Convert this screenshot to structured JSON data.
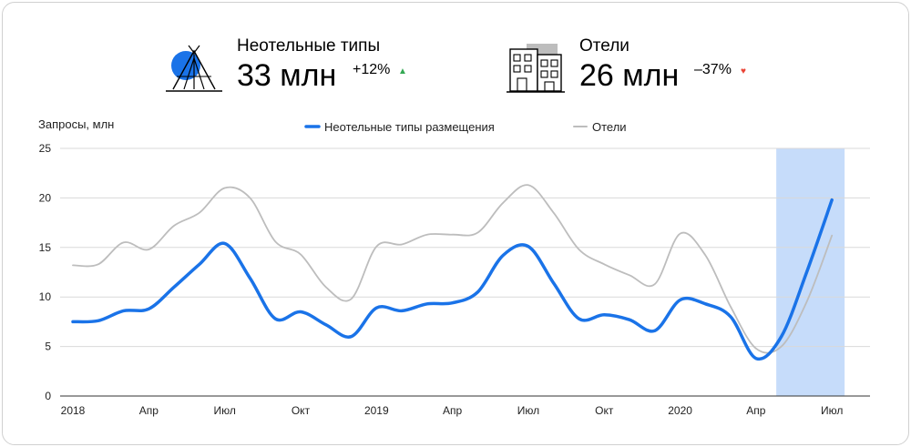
{
  "kpis": {
    "nonhotel": {
      "label": "Неотельные типы",
      "value": "33 млн",
      "change": "+12%",
      "icon": "tent-icon",
      "arrow_color": "#34a853"
    },
    "hotels": {
      "label": "Отели",
      "value": "26 млн",
      "change": "–37%",
      "icon": "building-icon",
      "arrow_color": "#ea4335"
    }
  },
  "chart_data": {
    "type": "line",
    "ylabel": "Запросы, млн",
    "ylim": [
      0,
      25
    ],
    "yticks": [
      0,
      5,
      10,
      15,
      20,
      25
    ],
    "xlim": [
      0,
      31
    ],
    "xticks": [
      {
        "x": 0,
        "label": "2018"
      },
      {
        "x": 3,
        "label": "Апр"
      },
      {
        "x": 6,
        "label": "Июл"
      },
      {
        "x": 9,
        "label": "Окт"
      },
      {
        "x": 12,
        "label": "2019"
      },
      {
        "x": 15,
        "label": "Апр"
      },
      {
        "x": 18,
        "label": "Июл"
      },
      {
        "x": 21,
        "label": "Окт"
      },
      {
        "x": 24,
        "label": "2020"
      },
      {
        "x": 27,
        "label": "Апр"
      },
      {
        "x": 30,
        "label": "Июл"
      }
    ],
    "highlight": {
      "from": 27.8,
      "to": 30.5,
      "color": "#c6dcfa"
    },
    "grid": "horizontal",
    "legend_position": "top",
    "series": [
      {
        "name": "Неотельные типы размещения",
        "color": "#1a73e8",
        "x": [
          0,
          1,
          2,
          3,
          4,
          5,
          6,
          7,
          8,
          9,
          10,
          11,
          12,
          13,
          14,
          15,
          16,
          17,
          18,
          19,
          20,
          21,
          22,
          23,
          24,
          25,
          26,
          27,
          28,
          29,
          30
        ],
        "values": [
          7.5,
          7.6,
          8.6,
          8.8,
          11.0,
          13.3,
          15.4,
          11.9,
          7.8,
          8.5,
          7.2,
          6.0,
          8.9,
          8.6,
          9.3,
          9.4,
          10.5,
          14.2,
          15.1,
          11.4,
          7.8,
          8.2,
          7.7,
          6.6,
          9.7,
          9.3,
          8.0,
          3.8,
          6.0,
          12.5,
          19.8
        ]
      },
      {
        "name": "Отели",
        "color": "#bdbdbd",
        "x": [
          0,
          1,
          2,
          3,
          4,
          5,
          6,
          7,
          8,
          9,
          10,
          11,
          12,
          13,
          14,
          15,
          16,
          17,
          18,
          19,
          20,
          21,
          22,
          23,
          24,
          25,
          26,
          27,
          28,
          29,
          30
        ],
        "values": [
          13.2,
          13.3,
          15.5,
          14.8,
          17.2,
          18.5,
          21.0,
          20.0,
          15.6,
          14.3,
          11.0,
          9.8,
          15.1,
          15.3,
          16.3,
          16.3,
          16.5,
          19.5,
          21.3,
          18.5,
          14.8,
          13.3,
          12.2,
          11.3,
          16.4,
          14.2,
          9.0,
          4.8,
          5.0,
          9.5,
          16.2
        ]
      }
    ]
  }
}
